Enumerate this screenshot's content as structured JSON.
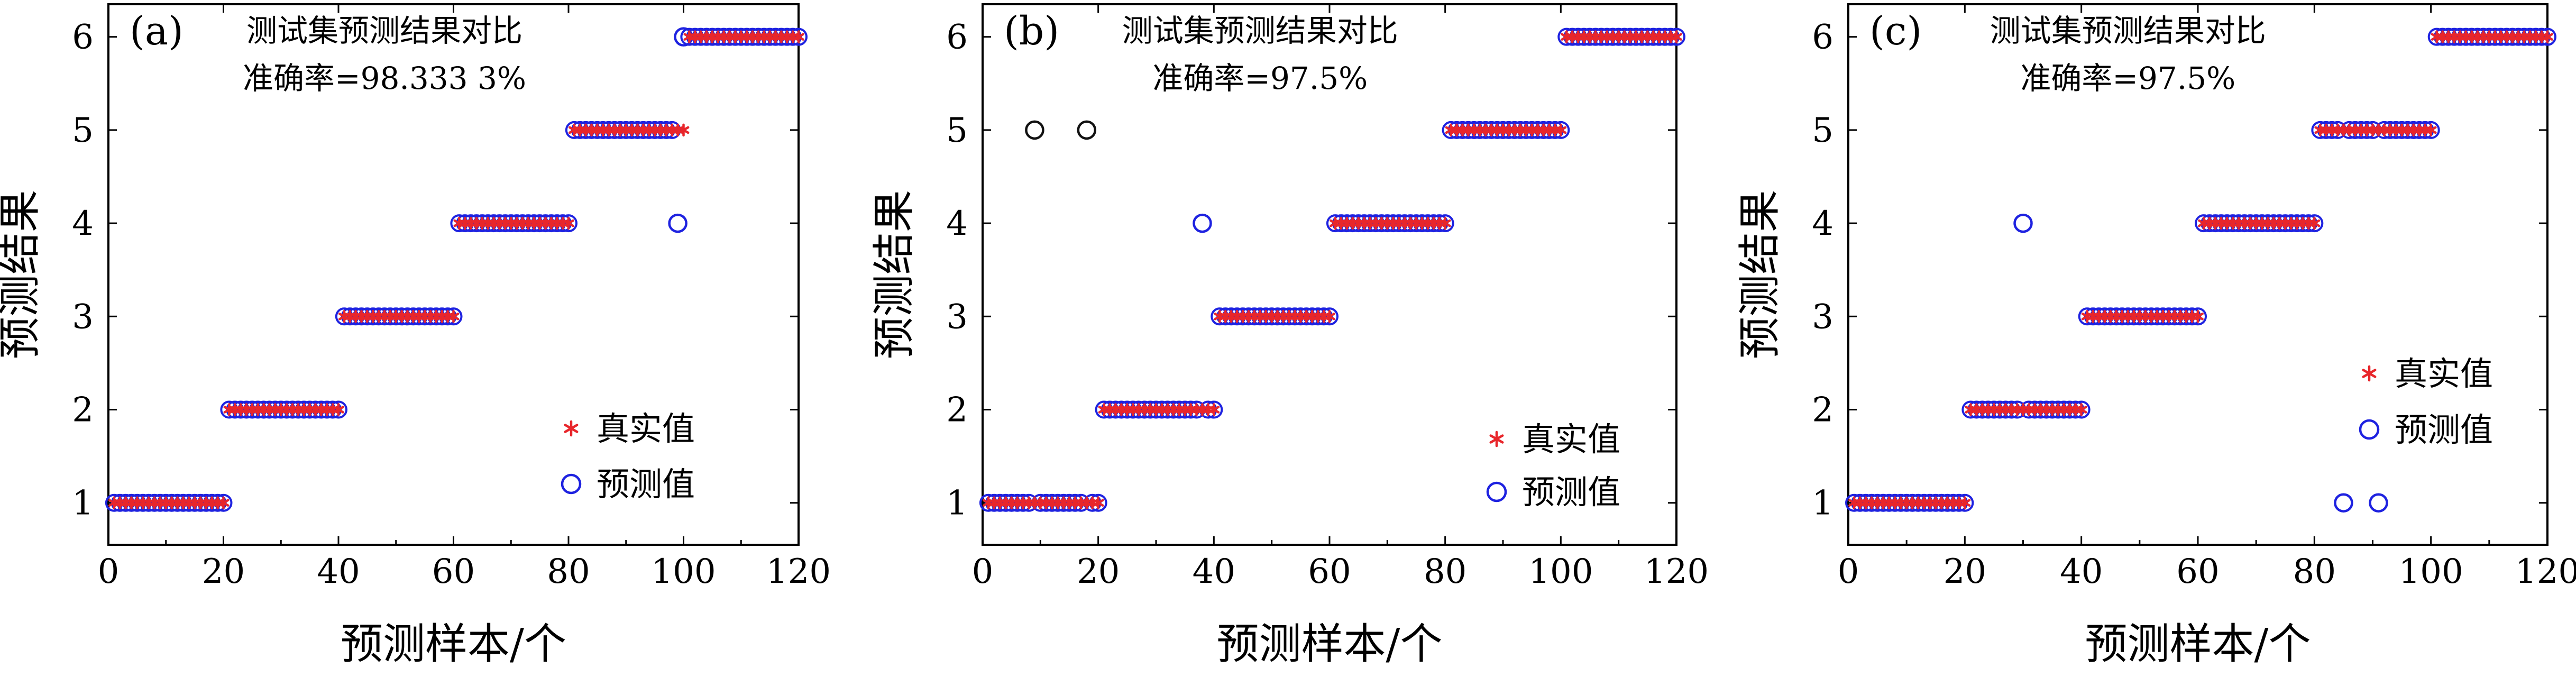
{
  "chart_data": [
    {
      "type": "scatter",
      "panel_label": "(a)",
      "title": "测试集预测结果对比",
      "subtitle": "准确率=98.333 3%",
      "xlabel": "预测样本/个",
      "ylabel": "预测结果",
      "xlim": [
        0,
        120
      ],
      "ylim": [
        0.55,
        6.35
      ],
      "xticks": [
        0,
        20,
        40,
        60,
        80,
        100,
        120
      ],
      "yticks": [
        1,
        2,
        3,
        4,
        5,
        6
      ],
      "grid": false,
      "legend": {
        "position": "lower-right",
        "entries": [
          "真实值",
          "预测值"
        ]
      },
      "true_segments": [
        {
          "from": 1,
          "to": 20,
          "value": 1
        },
        {
          "from": 21,
          "to": 40,
          "value": 2
        },
        {
          "from": 41,
          "to": 60,
          "value": 3
        },
        {
          "from": 61,
          "to": 80,
          "value": 4
        },
        {
          "from": 81,
          "to": 100,
          "value": 5
        },
        {
          "from": 101,
          "to": 120,
          "value": 6
        }
      ],
      "misclassified": [
        {
          "x": 99,
          "true": 5,
          "predicted": 4
        },
        {
          "x": 100,
          "true": 5,
          "predicted": 6
        }
      ]
    },
    {
      "type": "scatter",
      "panel_label": "(b)",
      "title": "测试集预测结果对比",
      "subtitle": "准确率=97.5%",
      "xlabel": "预测样本/个",
      "ylabel": "预测结果",
      "xlim": [
        0,
        120
      ],
      "ylim": [
        0.55,
        6.35
      ],
      "xticks": [
        0,
        20,
        40,
        60,
        80,
        100,
        120
      ],
      "yticks": [
        1,
        2,
        3,
        4,
        5,
        6
      ],
      "grid": false,
      "legend": {
        "position": "lower-right",
        "entries": [
          "真实值",
          "预测值"
        ]
      },
      "true_segments": [
        {
          "from": 1,
          "to": 20,
          "value": 1
        },
        {
          "from": 21,
          "to": 40,
          "value": 2
        },
        {
          "from": 41,
          "to": 60,
          "value": 3
        },
        {
          "from": 61,
          "to": 80,
          "value": 4
        },
        {
          "from": 81,
          "to": 100,
          "value": 5
        },
        {
          "from": 101,
          "to": 120,
          "value": 6
        }
      ],
      "misclassified": [
        {
          "x": 9,
          "true": 1,
          "predicted": 5
        },
        {
          "x": 18,
          "true": 1,
          "predicted": 5
        },
        {
          "x": 38,
          "true": 2,
          "predicted": 4
        }
      ]
    },
    {
      "type": "scatter",
      "panel_label": "(c)",
      "title": "测试集预测结果对比",
      "subtitle": "准确率=97.5%",
      "xlabel": "预测样本/个",
      "ylabel": "预测结果",
      "xlim": [
        0,
        120
      ],
      "ylim": [
        0.55,
        6.35
      ],
      "xticks": [
        0,
        20,
        40,
        60,
        80,
        100,
        120
      ],
      "yticks": [
        1,
        2,
        3,
        4,
        5,
        6
      ],
      "grid": false,
      "legend": {
        "position": "right",
        "entries": [
          "真实值",
          "预测值"
        ]
      },
      "true_segments": [
        {
          "from": 1,
          "to": 20,
          "value": 1
        },
        {
          "from": 21,
          "to": 40,
          "value": 2
        },
        {
          "from": 41,
          "to": 60,
          "value": 3
        },
        {
          "from": 61,
          "to": 80,
          "value": 4
        },
        {
          "from": 81,
          "to": 100,
          "value": 5
        },
        {
          "from": 101,
          "to": 120,
          "value": 6
        }
      ],
      "misclassified": [
        {
          "x": 30,
          "true": 2,
          "predicted": 4
        },
        {
          "x": 85,
          "true": 5,
          "predicted": 1
        },
        {
          "x": 91,
          "true": 5,
          "predicted": 1
        }
      ]
    }
  ],
  "colors": {
    "true_marker": "#e8262b",
    "predicted_marker": "#1e22e0",
    "misclassified_marker": "#111111",
    "axis": "#000000"
  }
}
